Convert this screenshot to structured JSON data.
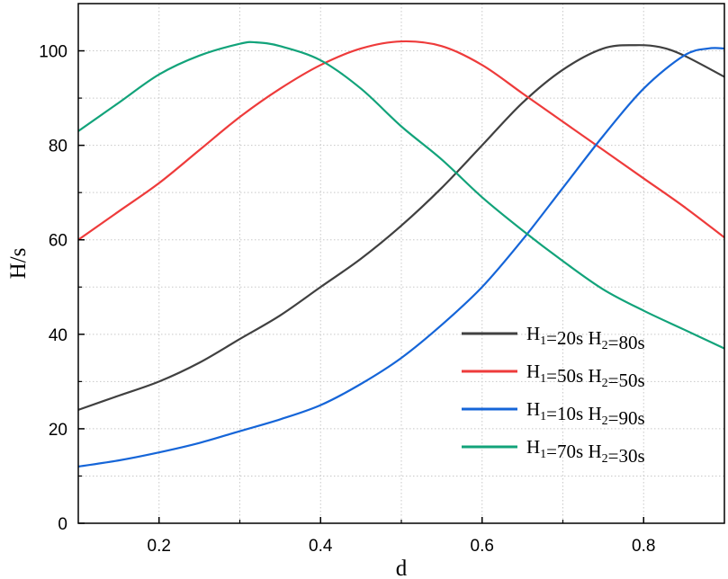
{
  "chart_data": {
    "type": "line",
    "title": "",
    "xlabel": "d",
    "ylabel": "H/s",
    "xlim": [
      0.1,
      0.9
    ],
    "ylim": [
      0,
      110
    ],
    "x_ticks": [
      0.2,
      0.4,
      0.6,
      0.8
    ],
    "x_tick_labels": [
      "0.2",
      "0.4",
      "0.6",
      "0.8"
    ],
    "y_ticks": [
      0,
      20,
      40,
      60,
      80,
      100
    ],
    "y_tick_labels": [
      "0",
      "20",
      "40",
      "60",
      "80",
      "100"
    ],
    "grid": true,
    "legend_position": "bottom-right",
    "series": [
      {
        "name": "H1=20s H2=80s",
        "label_parts": {
          "a": "H",
          "a_sub": "1",
          "a_val": "=20s ",
          "b": "H",
          "b_sub": "2",
          "b_val": "=80s"
        },
        "color": "#404040",
        "x": [
          0.1,
          0.15,
          0.2,
          0.25,
          0.3,
          0.35,
          0.4,
          0.45,
          0.5,
          0.55,
          0.6,
          0.65,
          0.7,
          0.75,
          0.79,
          0.82,
          0.85,
          0.9
        ],
        "y": [
          24,
          27,
          30,
          34,
          39,
          44,
          50,
          56,
          63,
          71,
          80,
          89,
          96,
          100.5,
          101.2,
          100.8,
          99,
          94.5
        ]
      },
      {
        "name": "H1=50s H2=50s",
        "label_parts": {
          "a": "H",
          "a_sub": "1",
          "a_val": "=50s ",
          "b": "H",
          "b_sub": "2",
          "b_val": "=50s"
        },
        "color": "#ee3b3b",
        "x": [
          0.1,
          0.15,
          0.2,
          0.25,
          0.3,
          0.35,
          0.4,
          0.45,
          0.5,
          0.55,
          0.6,
          0.65,
          0.7,
          0.75,
          0.8,
          0.85,
          0.9
        ],
        "y": [
          60,
          66,
          72,
          79,
          86,
          92,
          97,
          100.5,
          102,
          101,
          97,
          91,
          85,
          79,
          73,
          67,
          60.5
        ]
      },
      {
        "name": "H1=10s H2=90s",
        "label_parts": {
          "a": "H",
          "a_sub": "1",
          "a_val": "=10s ",
          "b": "H",
          "b_sub": "2",
          "b_val": "=90s"
        },
        "color": "#1565d8",
        "x": [
          0.1,
          0.15,
          0.2,
          0.25,
          0.3,
          0.35,
          0.4,
          0.45,
          0.5,
          0.55,
          0.6,
          0.65,
          0.7,
          0.75,
          0.8,
          0.85,
          0.88,
          0.9
        ],
        "y": [
          12,
          13.3,
          15,
          17,
          19.5,
          22,
          25,
          29.5,
          35,
          42,
          50,
          60,
          71,
          82,
          92,
          99,
          100.5,
          100.5
        ]
      },
      {
        "name": "H1=70s H2=30s",
        "label_parts": {
          "a": "H",
          "a_sub": "1",
          "a_val": "=70s ",
          "b": "H",
          "b_sub": "2",
          "b_val": "=30s"
        },
        "color": "#12a37a",
        "x": [
          0.1,
          0.15,
          0.2,
          0.25,
          0.3,
          0.32,
          0.35,
          0.4,
          0.45,
          0.5,
          0.55,
          0.6,
          0.65,
          0.7,
          0.75,
          0.8,
          0.85,
          0.9
        ],
        "y": [
          83,
          89,
          95,
          99,
          101.5,
          101.8,
          101,
          98,
          92,
          84,
          77,
          69,
          62,
          55.5,
          49.5,
          45,
          41,
          37
        ]
      }
    ]
  }
}
